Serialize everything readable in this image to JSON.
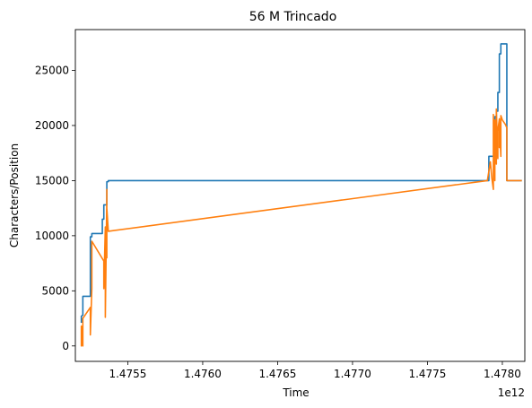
{
  "chart_data": {
    "type": "line",
    "title": "56 M Trincado",
    "xlabel": "Time",
    "ylabel": "Characters/Position",
    "x_offset_label": "1e12",
    "xlim": [
      1.47515,
      1.47815
    ],
    "ylim": [
      -1400,
      28700
    ],
    "xticks": [
      1.4755,
      1.476,
      1.4765,
      1.477,
      1.4775,
      1.478
    ],
    "xtick_labels": [
      "1.4755",
      "1.4760",
      "1.4765",
      "1.4770",
      "1.4775",
      "1.4780"
    ],
    "yticks": [
      0,
      5000,
      10000,
      15000,
      20000,
      25000
    ],
    "ytick_labels": [
      "0",
      "5000",
      "10000",
      "15000",
      "20000",
      "25000"
    ],
    "colors": {
      "series1": "#1f77b4",
      "series2": "#ff7f0e"
    },
    "series": [
      {
        "name": "characters",
        "x": [
          1.47519,
          1.47519,
          1.47519,
          1.4752,
          1.4752,
          1.47525,
          1.47525,
          1.47526,
          1.47526,
          1.47533,
          1.47533,
          1.47534,
          1.47534,
          1.47536,
          1.47536,
          1.47536,
          1.47536,
          1.47537,
          1.47537,
          1.47791,
          1.47791,
          1.47795,
          1.47795,
          1.47796,
          1.47796,
          1.47797,
          1.47797,
          1.47798,
          1.47798,
          1.47799,
          1.47799,
          1.47803,
          1.47803,
          1.47813
        ],
        "y": [
          2100,
          2500,
          2700,
          2800,
          4500,
          4500,
          9900,
          9900,
          10200,
          10200,
          11500,
          11500,
          12800,
          12800,
          14200,
          14700,
          14900,
          14900,
          15000,
          15000,
          17200,
          17200,
          20800,
          20800,
          21300,
          21300,
          23000,
          23000,
          26500,
          26500,
          27400,
          27400,
          15000,
          15000
        ]
      },
      {
        "name": "position",
        "x": [
          1.47519,
          1.47519,
          1.47519,
          1.47519,
          1.4752,
          1.4752,
          1.47525,
          1.47525,
          1.47526,
          1.47526,
          1.47534,
          1.47534,
          1.47535,
          1.47535,
          1.47535,
          1.47536,
          1.47536,
          1.47536,
          1.47536,
          1.47536,
          1.47537,
          1.4779,
          1.47792,
          1.47793,
          1.47794,
          1.47794,
          1.47795,
          1.47795,
          1.47796,
          1.47796,
          1.47797,
          1.47797,
          1.47798,
          1.47798,
          1.47798,
          1.47799,
          1.47799,
          1.478,
          1.47802,
          1.47803,
          1.47803,
          1.47813
        ],
        "y": [
          0,
          1500,
          0,
          1800,
          0,
          2500,
          3500,
          1000,
          5200,
          9500,
          7700,
          5200,
          10800,
          5300,
          2600,
          13500,
          9500,
          14200,
          8000,
          12500,
          10400,
          15000,
          16700,
          15200,
          14200,
          21000,
          15000,
          20500,
          16500,
          21500,
          17000,
          19500,
          20600,
          18000,
          20400,
          17200,
          20900,
          20500,
          20100,
          19800,
          15000,
          15000
        ]
      }
    ]
  }
}
